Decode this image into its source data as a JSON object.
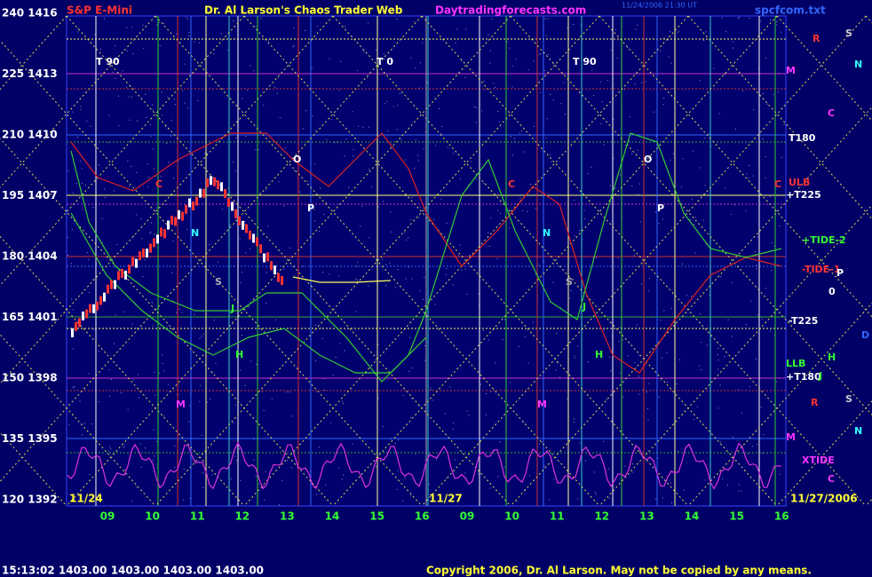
{
  "header": {
    "instrument": "S&P E-Mini",
    "title": "Dr. Al Larson's Chaos Trader Web",
    "site": "Daytradingforecasts.com",
    "timestamp": "11/24/2006 21:30 UT",
    "file": "spcfcom.txt"
  },
  "y_axis": [
    "240 1416",
    "225 1413",
    "210 1410",
    "195 1407",
    "180 1404",
    "165 1401",
    "150 1398",
    "135 1395",
    "120 1392"
  ],
  "x_axis": {
    "day1": [
      "09",
      "10",
      "11",
      "12",
      "13",
      "14",
      "15",
      "16"
    ],
    "day2": [
      "09",
      "10",
      "11",
      "12",
      "13",
      "14",
      "15",
      "16"
    ]
  },
  "dates": [
    "11/24",
    "11/27",
    "11/27/2006"
  ],
  "right_labels": [
    "R",
    "S",
    "N",
    "M",
    "C",
    "T180",
    "ULB",
    "C",
    "+T225",
    "+TIDE-2",
    "-TIDE-1",
    "P",
    "0",
    "-T225",
    "D",
    "LLB",
    "+T180",
    "H",
    "J",
    "R",
    "S",
    "N",
    "M",
    "XTIDE",
    "C"
  ],
  "plot_labels": [
    "T 90",
    "T 0",
    "T 90",
    "C",
    "O",
    "P",
    "N",
    "S",
    "H",
    "M",
    "C",
    "O",
    "P",
    "N",
    "S",
    "H",
    "M",
    "J",
    "J"
  ],
  "status": "15:13:02  1403.00 1403.00 1403.00 1403.00",
  "copyright": "Copyright 2006, Dr. Al Larson. May not be copied by any means."
}
